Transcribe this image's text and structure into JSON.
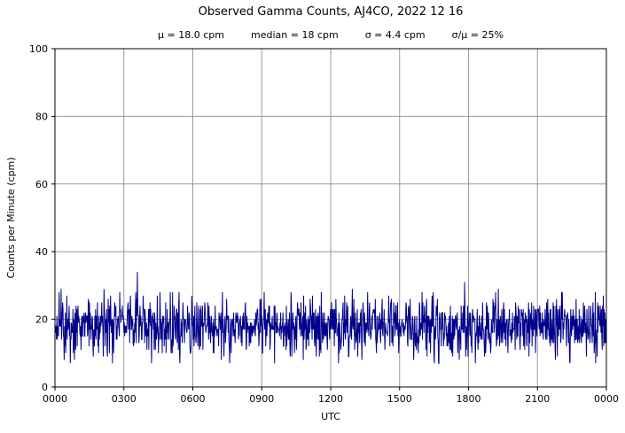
{
  "chart_data": {
    "type": "line",
    "title": "Observed Gamma Counts, AJ4CO, 2022 12 16",
    "stats_items": [
      "μ = 18.0 cpm",
      "median = 18 cpm",
      "σ = 4.4 cpm",
      "σ/μ = 25%"
    ],
    "stats": {
      "mean_cpm": 18.0,
      "median_cpm": 18,
      "sigma_cpm": 4.4,
      "sigma_over_mu_percent": 25
    },
    "xlabel": "UTC",
    "ylabel": "Counts per Minute (cpm)",
    "ylim": [
      0,
      100
    ],
    "yticks": [
      0,
      20,
      40,
      60,
      80,
      100
    ],
    "xlim_minutes": [
      0,
      1440
    ],
    "xtick_minutes": [
      0,
      180,
      360,
      540,
      720,
      900,
      1080,
      1260,
      1440
    ],
    "xtick_labels": [
      "0000",
      "0300",
      "0600",
      "0900",
      "1200",
      "1500",
      "1800",
      "2100",
      "0000"
    ],
    "grid": true,
    "grid_color": "#9a9a9a",
    "line_color": "#00008b",
    "series": {
      "name": "observed-gamma-counts",
      "n_points": 1440,
      "mean": 18.0,
      "sigma": 4.4,
      "min_observed": 7,
      "max_observed": 34,
      "seed": 20221216
    }
  }
}
